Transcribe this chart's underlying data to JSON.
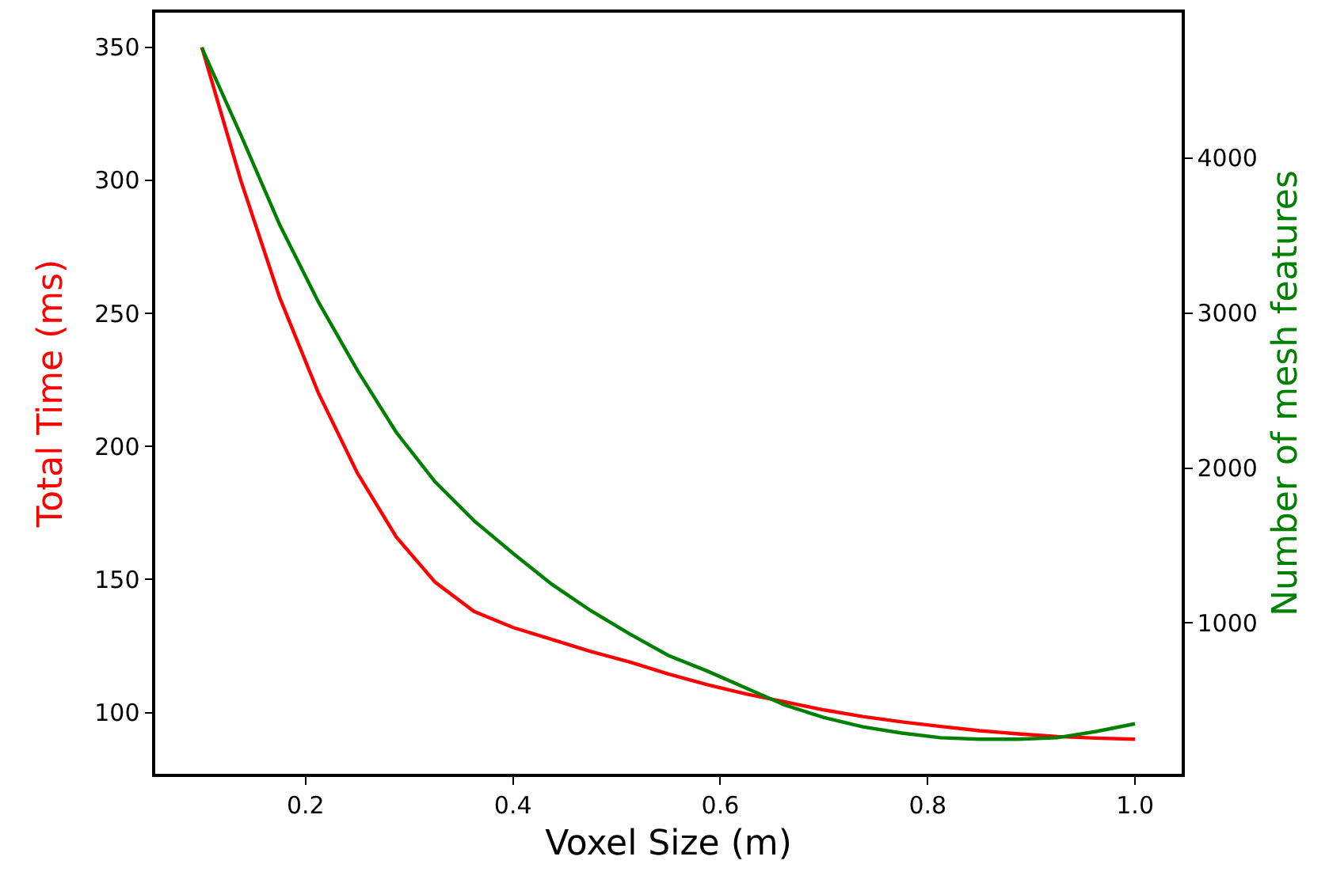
{
  "chart_data": {
    "type": "line",
    "xlabel": "Voxel Size (m)",
    "ylabel": "Total Time (ms)",
    "y2label": "Number of mesh features",
    "x": [
      0.1,
      0.1375,
      0.175,
      0.2125,
      0.25,
      0.2875,
      0.325,
      0.3625,
      0.4,
      0.4375,
      0.475,
      0.5125,
      0.55,
      0.5875,
      0.625,
      0.6625,
      0.7,
      0.7375,
      0.775,
      0.8125,
      0.85,
      0.8875,
      0.925,
      0.9625,
      1.0
    ],
    "series": [
      {
        "color": "#ff0000",
        "values": [
          350,
          300,
          256,
          220,
          190,
          166,
          149,
          138,
          132,
          127.5,
          123,
          119,
          114.5,
          110.5,
          107,
          104,
          101,
          98.5,
          96.5,
          94.8,
          93.2,
          92,
          91,
          90.4,
          90
        ]
      },
      {
        "color": "#008000",
        "axis": "y2",
        "values": [
          4710,
          4150,
          3570,
          3070,
          2630,
          2230,
          1910,
          1660,
          1450,
          1250,
          1080,
          930,
          790,
          690,
          580,
          470,
          390,
          330,
          290,
          260,
          250,
          250,
          260,
          300,
          350
        ]
      }
    ],
    "xlim": [
      0.055,
      1.045
    ],
    "xticks": [
      0.2,
      0.4,
      0.6,
      0.8,
      {
        "value": 1,
        "label": "1.0"
      }
    ],
    "ylim": [
      77,
      363
    ],
    "yticks": [
      100,
      150,
      200,
      250,
      300,
      350
    ],
    "y2lim": [
      27,
      4938
    ],
    "y2ticks": [
      1000,
      2000,
      3000,
      4000
    ],
    "marker": "none",
    "line_style": "solid"
  }
}
